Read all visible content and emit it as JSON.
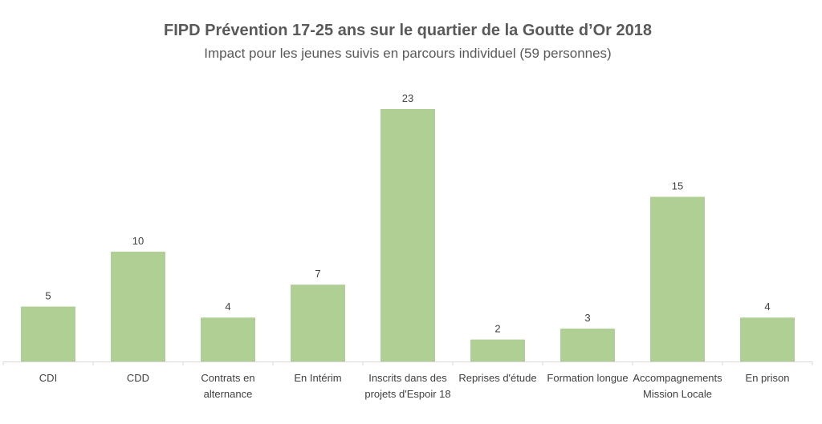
{
  "chart_data": {
    "type": "bar",
    "title": "FIPD Prévention 17-25 ans sur le quartier de la Goutte d’Or 2018",
    "subtitle": "Impact pour les jeunes suivis en parcours individuel (59 personnes)",
    "categories": [
      [
        "CDI"
      ],
      [
        "CDD"
      ],
      [
        "Contrats en",
        "alternance"
      ],
      [
        "En Intérim"
      ],
      [
        "Inscrits dans des",
        "projets d'Espoir 18"
      ],
      [
        "Reprises d'étude"
      ],
      [
        "Formation longue"
      ],
      [
        "Accompagnements",
        "Mission Locale"
      ],
      [
        "En prison"
      ]
    ],
    "values": [
      5,
      10,
      4,
      7,
      23,
      2,
      3,
      15,
      4
    ],
    "ylim": [
      0,
      25
    ],
    "grid": false,
    "legend": "none",
    "data_labels": true,
    "colors": {
      "bar": "#b0cf95",
      "axis": "#d9d9d9",
      "text": "#404040"
    }
  }
}
